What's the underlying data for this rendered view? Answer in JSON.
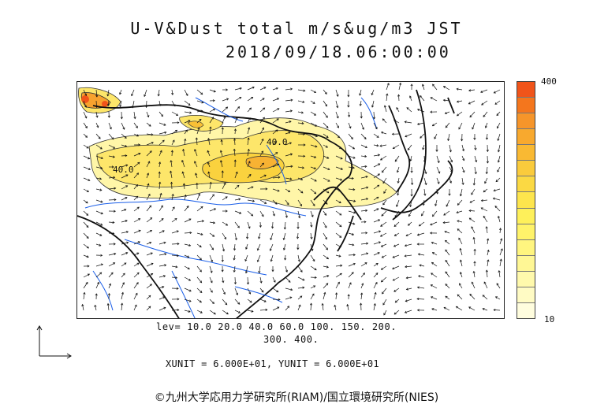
{
  "title": {
    "line1": "U-V&Dust total m/s&ug/m3 JST",
    "line2": "2018/09/18.06:00:00"
  },
  "colorbar": {
    "max_label": "400",
    "min_label": "10",
    "colors": [
      "#f0541a",
      "#f4761d",
      "#f6952a",
      "#f8a92e",
      "#f9b933",
      "#facb3c",
      "#fbd943",
      "#fde54d",
      "#fef05a",
      "#fff36a",
      "#fff57f",
      "#fff795",
      "#fff9ac",
      "#fffbc4",
      "#fffdde"
    ]
  },
  "legend": {
    "levels_line1": "lev= 10.0 20.0 40.0 60.0 100. 150. 200.",
    "levels_line2": "300. 400.",
    "units": "XUNIT = 6.000E+01, YUNIT = 6.000E+01"
  },
  "map_labels": {
    "contour_label_1": "40.0",
    "contour_label_2": "40.0"
  },
  "credit": "©九州大学応用力学研究所(RIAM)/国立環境研究所(NIES)"
}
